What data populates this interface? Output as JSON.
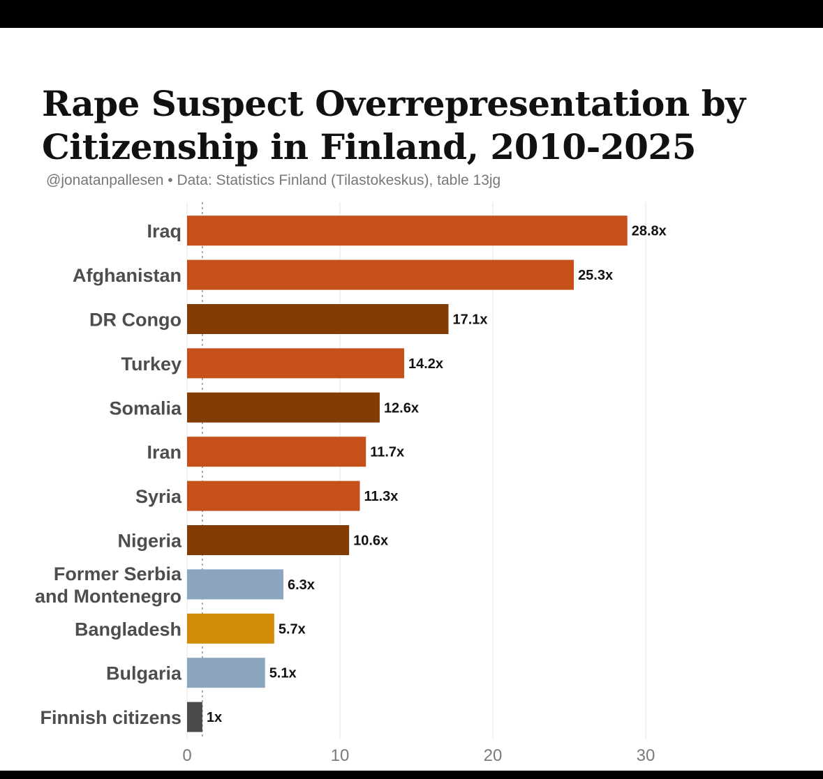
{
  "title": "Rape Suspect Overrepresentation by Citizenship in Finland, 2010-2025",
  "subtitle": "@jonatanpallesen • Data: Statistics Finland (Tilastokeskus), table 13jg",
  "chart_data": {
    "type": "bar",
    "orientation": "horizontal",
    "title": "Rape Suspect Overrepresentation by Citizenship in Finland, 2010-2025",
    "xlim": [
      0,
      38
    ],
    "xticks": [
      0,
      10,
      20,
      30
    ],
    "reference_line": 1,
    "grid": true,
    "categories": [
      [
        "Iraq"
      ],
      [
        "Afghanistan"
      ],
      [
        "DR Congo"
      ],
      [
        "Turkey"
      ],
      [
        "Somalia"
      ],
      [
        "Iran"
      ],
      [
        "Syria"
      ],
      [
        "Nigeria"
      ],
      [
        "Former Serbia",
        "and Montenegro"
      ],
      [
        "Bangladesh"
      ],
      [
        "Bulgaria"
      ],
      [
        "Finnish citizens"
      ]
    ],
    "values": [
      28.8,
      25.3,
      17.1,
      14.2,
      12.6,
      11.7,
      11.3,
      10.6,
      6.3,
      5.7,
      5.1,
      1
    ],
    "value_labels": [
      "28.8x",
      "25.3x",
      "17.1x",
      "14.2x",
      "12.6x",
      "11.7x",
      "11.3x",
      "10.6x",
      "6.3x",
      "5.7x",
      "5.1x",
      "1x"
    ],
    "colors": [
      "#c5501a",
      "#c5501a",
      "#843c05",
      "#c5501a",
      "#843c05",
      "#c5501a",
      "#c5501a",
      "#843c05",
      "#8aa5bd",
      "#d18b05",
      "#8aa5bd",
      "#4a4a4a"
    ]
  }
}
